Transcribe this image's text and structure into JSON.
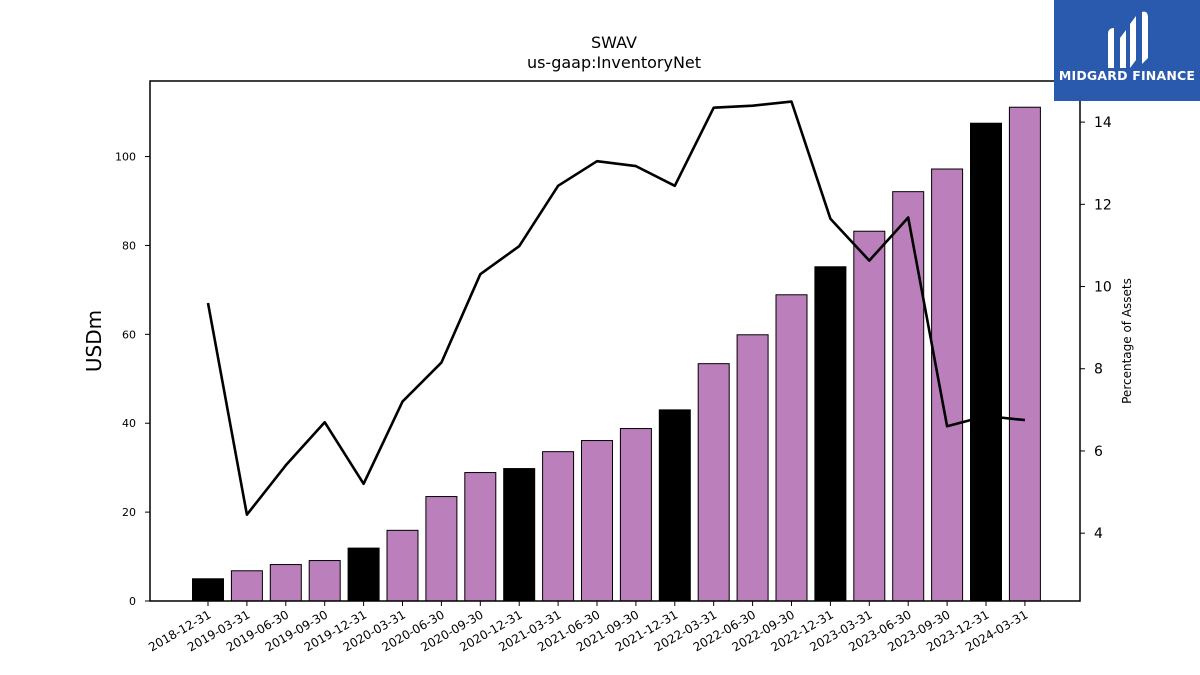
{
  "chart_data": {
    "type": "bar",
    "title": "SWAV",
    "subtitle": "us-gaap:InventoryNet",
    "ylabel": "USDm",
    "y2label": "Percentage of Assets",
    "ylim": [
      0,
      117
    ],
    "y2lim": [
      2.35,
      15.0
    ],
    "yticks": [
      0,
      20,
      40,
      60,
      80,
      100
    ],
    "y2ticks": [
      4,
      6,
      8,
      10,
      12,
      14
    ],
    "categories": [
      "2018-12-31",
      "2019-03-31",
      "2019-06-30",
      "2019-09-30",
      "2019-12-31",
      "2020-03-31",
      "2020-06-30",
      "2020-09-30",
      "2020-12-31",
      "2021-03-31",
      "2021-06-30",
      "2021-09-30",
      "2021-12-31",
      "2022-03-31",
      "2022-06-30",
      "2022-09-30",
      "2022-12-31",
      "2023-03-31",
      "2023-06-30",
      "2023-09-30",
      "2023-12-31",
      "2024-03-31"
    ],
    "series": [
      {
        "type": "bar",
        "values": [
          5.0,
          6.8,
          8.2,
          9.1,
          11.9,
          15.9,
          23.5,
          28.9,
          29.8,
          33.6,
          36.1,
          38.8,
          43.0,
          53.4,
          59.9,
          68.9,
          75.2,
          83.2,
          92.1,
          97.2,
          107.5,
          111.1
        ],
        "colors": [
          "#000000",
          "#bb7fbb",
          "#bb7fbb",
          "#bb7fbb",
          "#000000",
          "#bb7fbb",
          "#bb7fbb",
          "#bb7fbb",
          "#000000",
          "#bb7fbb",
          "#bb7fbb",
          "#bb7fbb",
          "#000000",
          "#bb7fbb",
          "#bb7fbb",
          "#bb7fbb",
          "#000000",
          "#bb7fbb",
          "#bb7fbb",
          "#bb7fbb",
          "#000000",
          "#bb7fbb"
        ]
      },
      {
        "type": "line",
        "axis": "right",
        "color": "#000000",
        "values": [
          9.6,
          4.45,
          5.65,
          6.7,
          5.2,
          7.2,
          8.15,
          10.3,
          10.98,
          12.45,
          13.05,
          12.93,
          12.45,
          14.35,
          14.4,
          14.5,
          11.65,
          10.63,
          11.68,
          6.6,
          6.85,
          6.75
        ]
      }
    ]
  },
  "logo": {
    "text": "MIDGARD FINANCE"
  }
}
